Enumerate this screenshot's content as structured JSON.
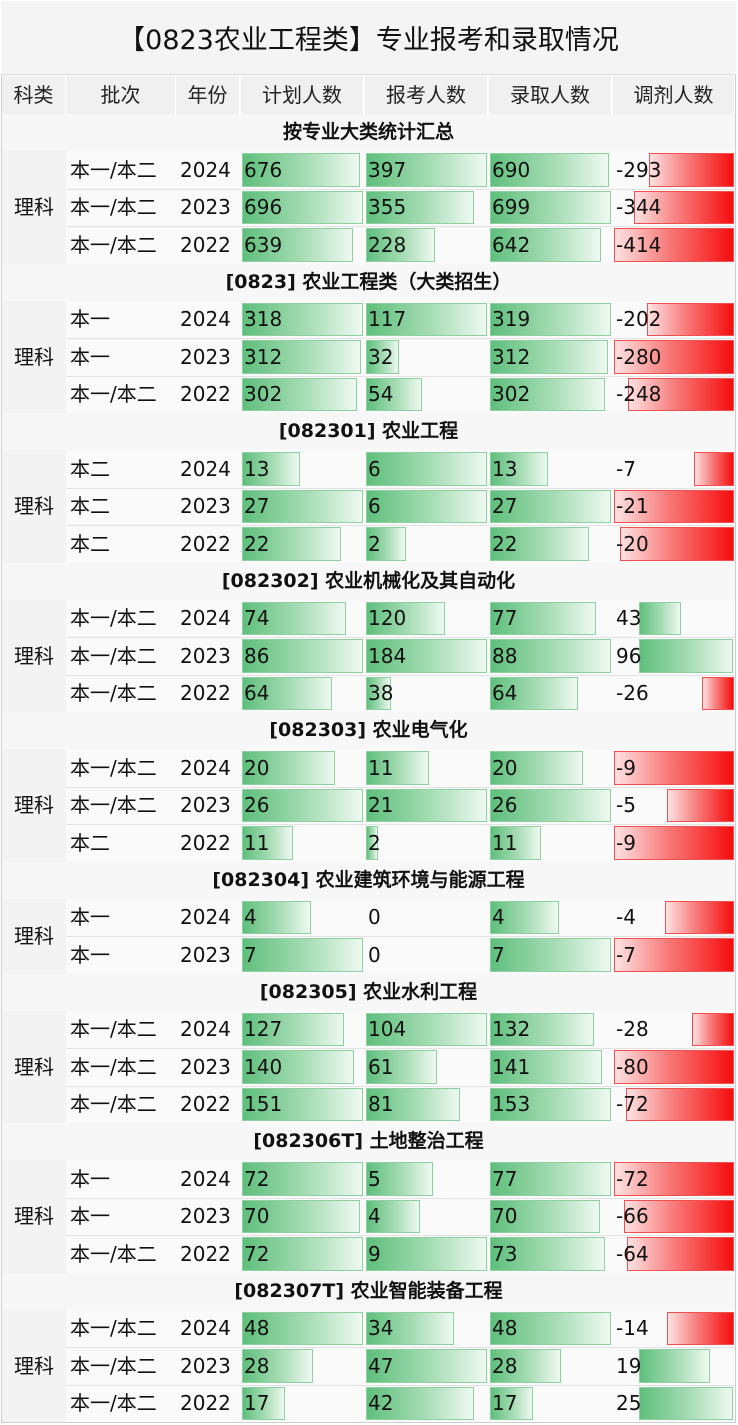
{
  "title": "【0823农业工程类】专业报考和录取情况",
  "headers": [
    "科类",
    "批次",
    "年份",
    "计划人数",
    "报考人数",
    "录取人数",
    "调剂人数"
  ],
  "colors": {
    "positive_bar": "#5fbf7c",
    "negative_bar": "#f50d0d"
  },
  "sections": [
    {
      "name": "按专业大类统计汇总",
      "category": "理科",
      "rows": [
        {
          "batch": "本一/本二",
          "year": "2024",
          "plan": 676,
          "apply": 397,
          "admit": 690,
          "adjust": -293
        },
        {
          "batch": "本一/本二",
          "year": "2023",
          "plan": 696,
          "apply": 355,
          "admit": 699,
          "adjust": -344
        },
        {
          "batch": "本一/本二",
          "year": "2022",
          "plan": 639,
          "apply": 228,
          "admit": 642,
          "adjust": -414
        }
      ]
    },
    {
      "name": "[0823] 农业工程类（大类招生）",
      "category": "理科",
      "rows": [
        {
          "batch": "本一",
          "year": "2024",
          "plan": 318,
          "apply": 117,
          "admit": 319,
          "adjust": -202
        },
        {
          "batch": "本一",
          "year": "2023",
          "plan": 312,
          "apply": 32,
          "admit": 312,
          "adjust": -280
        },
        {
          "batch": "本一/本二",
          "year": "2022",
          "plan": 302,
          "apply": 54,
          "admit": 302,
          "adjust": -248
        }
      ]
    },
    {
      "name": "[082301] 农业工程",
      "category": "理科",
      "rows": [
        {
          "batch": "本二",
          "year": "2024",
          "plan": 13,
          "apply": 6,
          "admit": 13,
          "adjust": -7
        },
        {
          "batch": "本二",
          "year": "2023",
          "plan": 27,
          "apply": 6,
          "admit": 27,
          "adjust": -21
        },
        {
          "batch": "本二",
          "year": "2022",
          "plan": 22,
          "apply": 2,
          "admit": 22,
          "adjust": -20
        }
      ]
    },
    {
      "name": "[082302] 农业机械化及其自动化",
      "category": "理科",
      "rows": [
        {
          "batch": "本一/本二",
          "year": "2024",
          "plan": 74,
          "apply": 120,
          "admit": 77,
          "adjust": 43
        },
        {
          "batch": "本一/本二",
          "year": "2023",
          "plan": 86,
          "apply": 184,
          "admit": 88,
          "adjust": 96
        },
        {
          "batch": "本一/本二",
          "year": "2022",
          "plan": 64,
          "apply": 38,
          "admit": 64,
          "adjust": -26
        }
      ]
    },
    {
      "name": "[082303] 农业电气化",
      "category": "理科",
      "rows": [
        {
          "batch": "本一/本二",
          "year": "2024",
          "plan": 20,
          "apply": 11,
          "admit": 20,
          "adjust": -9
        },
        {
          "batch": "本一/本二",
          "year": "2023",
          "plan": 26,
          "apply": 21,
          "admit": 26,
          "adjust": -5
        },
        {
          "batch": "本二",
          "year": "2022",
          "plan": 11,
          "apply": 2,
          "admit": 11,
          "adjust": -9
        }
      ]
    },
    {
      "name": "[082304] 农业建筑环境与能源工程",
      "category": "理科",
      "rows": [
        {
          "batch": "本一",
          "year": "2024",
          "plan": 4,
          "apply": 0,
          "admit": 4,
          "adjust": -4
        },
        {
          "batch": "本一",
          "year": "2023",
          "plan": 7,
          "apply": 0,
          "admit": 7,
          "adjust": -7
        }
      ]
    },
    {
      "name": "[082305] 农业水利工程",
      "category": "理科",
      "rows": [
        {
          "batch": "本一/本二",
          "year": "2024",
          "plan": 127,
          "apply": 104,
          "admit": 132,
          "adjust": -28
        },
        {
          "batch": "本一/本二",
          "year": "2023",
          "plan": 140,
          "apply": 61,
          "admit": 141,
          "adjust": -80
        },
        {
          "batch": "本一/本二",
          "year": "2022",
          "plan": 151,
          "apply": 81,
          "admit": 153,
          "adjust": -72
        }
      ]
    },
    {
      "name": "[082306T] 土地整治工程",
      "category": "理科",
      "rows": [
        {
          "batch": "本一",
          "year": "2024",
          "plan": 72,
          "apply": 5,
          "admit": 77,
          "adjust": -72
        },
        {
          "batch": "本一",
          "year": "2023",
          "plan": 70,
          "apply": 4,
          "admit": 70,
          "adjust": -66
        },
        {
          "batch": "本一/本二",
          "year": "2022",
          "plan": 72,
          "apply": 9,
          "admit": 73,
          "adjust": -64
        }
      ]
    },
    {
      "name": "[082307T] 农业智能装备工程",
      "category": "理科",
      "rows": [
        {
          "batch": "本一/本二",
          "year": "2024",
          "plan": 48,
          "apply": 34,
          "admit": 48,
          "adjust": -14
        },
        {
          "batch": "本一/本二",
          "year": "2023",
          "plan": 28,
          "apply": 47,
          "admit": 28,
          "adjust": 19
        },
        {
          "batch": "本一/本二",
          "year": "2022",
          "plan": 17,
          "apply": 42,
          "admit": 17,
          "adjust": 25
        }
      ]
    }
  ]
}
